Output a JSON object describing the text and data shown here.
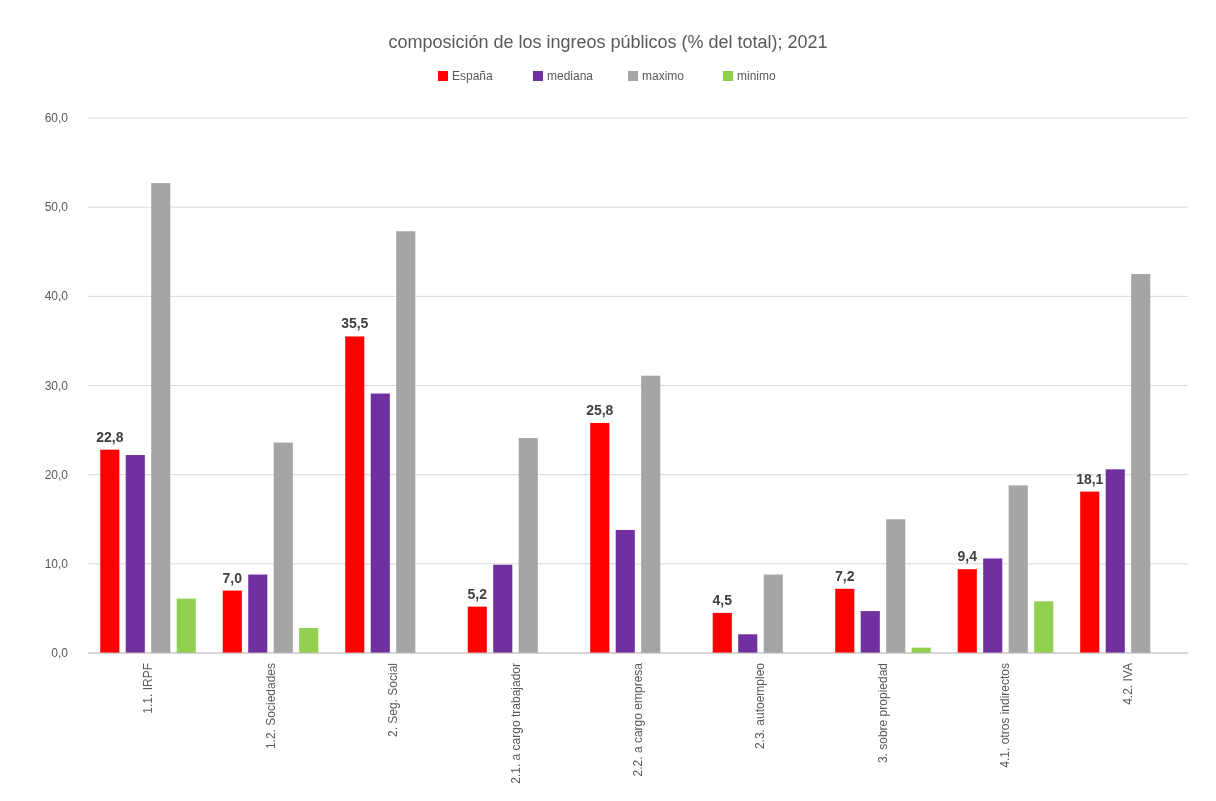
{
  "chart_data": {
    "type": "bar",
    "title": "composición de los ingreos públicos (% del total); 2021",
    "categories": [
      "1.1. IRPF",
      "1.2. Sociedades",
      "2. Seg. Social",
      "2.1. a cargo trabajador",
      "2.2. a cargo empresa",
      "2.3. autoempleo",
      "3. sobre propiedad",
      "4.1. otros indirectos",
      "4.2. IVA"
    ],
    "series": [
      {
        "name": "España",
        "color": "#ff0000",
        "values": [
          22.8,
          7.0,
          35.5,
          5.2,
          25.8,
          4.5,
          7.2,
          9.4,
          18.1
        ],
        "value_labels": [
          "22,8",
          "7,0",
          "35,5",
          "5,2",
          "25,8",
          "4,5",
          "7,2",
          "9,4",
          "18,1"
        ]
      },
      {
        "name": "mediana",
        "color": "#7030a0",
        "values": [
          22.2,
          8.8,
          29.1,
          9.9,
          13.8,
          2.1,
          4.7,
          10.6,
          20.6
        ]
      },
      {
        "name": "maximo",
        "color": "#a5a5a5",
        "values": [
          52.7,
          23.6,
          47.3,
          24.1,
          31.1,
          8.8,
          15.0,
          18.8,
          42.5
        ]
      },
      {
        "name": "minimo",
        "color": "#92d050",
        "values": [
          6.1,
          2.8,
          null,
          null,
          null,
          null,
          0.6,
          5.8,
          null
        ]
      }
    ],
    "ylim": [
      0,
      60
    ],
    "yticks": [
      {
        "value": 0,
        "label": "0,0"
      },
      {
        "value": 10,
        "label": "10,0"
      },
      {
        "value": 20,
        "label": "20,0"
      },
      {
        "value": 30,
        "label": "30,0"
      },
      {
        "value": 40,
        "label": "40,0"
      },
      {
        "value": 50,
        "label": "50,0"
      },
      {
        "value": 60,
        "label": "60,0"
      }
    ],
    "grid": "y",
    "legend": "top"
  }
}
